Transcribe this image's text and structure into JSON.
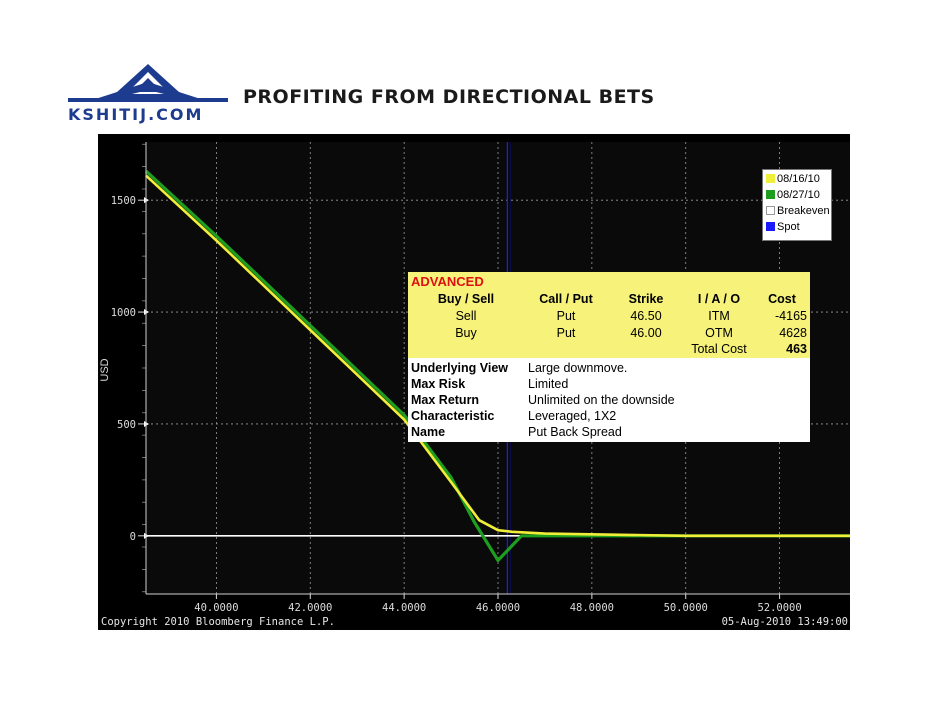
{
  "header": {
    "logo_text": "KSHITIJ.COM",
    "title": "PROFITING FROM DIRECTIONAL BETS"
  },
  "colors": {
    "background": "#000000",
    "yellow_series": "#f1ee3a",
    "green_series": "#1e9e1e",
    "breakeven": "#ffffff",
    "spot": "#1a1aff",
    "logo": "#1d3c8f"
  },
  "chart_data": {
    "type": "line",
    "ylabel": "USD",
    "xlabel": "",
    "xlim": [
      38.5,
      53.5
    ],
    "ylim": [
      -260,
      1760
    ],
    "x_ticks": [
      "40.0000",
      "42.0000",
      "44.0000",
      "46.0000",
      "48.0000",
      "50.0000",
      "52.0000"
    ],
    "x_tick_values": [
      40,
      42,
      44,
      46,
      48,
      50,
      52
    ],
    "y_ticks": [
      "0",
      "500",
      "1000",
      "1500"
    ],
    "y_tick_values": [
      0,
      500,
      1000,
      1500
    ],
    "grid": true,
    "legend_position": "top-right",
    "spot": 46.2,
    "series": [
      {
        "name": "08/16/10",
        "color": "#f1ee3a",
        "x": [
          38.5,
          40,
          42,
          44,
          45,
          45.6,
          46,
          46.3,
          47,
          50,
          53.5
        ],
        "y": [
          1610,
          1320,
          920,
          520,
          240,
          70,
          25,
          18,
          10,
          0,
          0
        ]
      },
      {
        "name": "08/27/10",
        "color": "#1e9e1e",
        "x": [
          38.5,
          40,
          42,
          44,
          45,
          45.5,
          46,
          46.5,
          47,
          50,
          53.5
        ],
        "y": [
          1630,
          1340,
          940,
          540,
          260,
          60,
          -110,
          0,
          0,
          0,
          0
        ]
      },
      {
        "name": "Breakeven",
        "color": "#ffffff",
        "x": [
          38.5,
          53.5
        ],
        "y": [
          0,
          0
        ]
      },
      {
        "name": "Spot",
        "color": "#1a1aff"
      }
    ],
    "footer_left": "Copyright 2010 Bloomberg Finance L.P.",
    "footer_right": "05-Aug-2010 13:49:00"
  },
  "strategy_table": {
    "label": "ADVANCED",
    "headers": [
      "Buy / Sell",
      "Call / Put",
      "Strike",
      "I / A / O",
      "Cost"
    ],
    "rows": [
      [
        "Sell",
        "Put",
        "46.50",
        "ITM",
        "-4165"
      ],
      [
        "Buy",
        "Put",
        "46.00",
        "OTM",
        "4628"
      ]
    ],
    "total_label": "Total Cost",
    "total_value": "463",
    "info": [
      {
        "key": "Underlying View",
        "value": "Large downmove."
      },
      {
        "key": "Max Risk",
        "value": "Limited"
      },
      {
        "key": "Max Return",
        "value": "Unlimited on the downside"
      },
      {
        "key": "Characteristic",
        "value": "Leveraged, 1X2"
      },
      {
        "key": "Name",
        "value": "Put Back Spread"
      }
    ]
  }
}
